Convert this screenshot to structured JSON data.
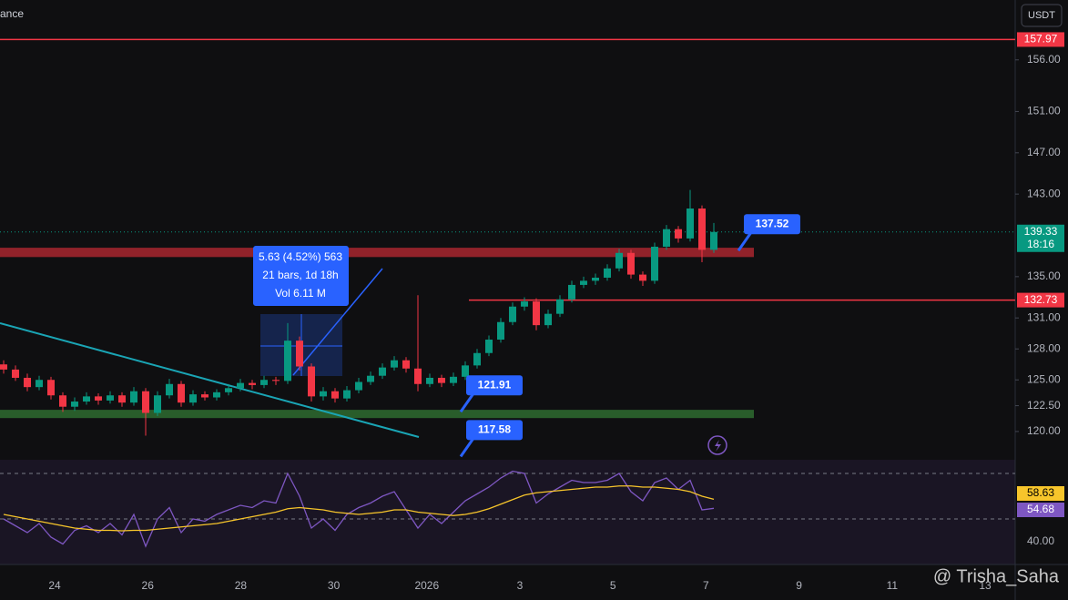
{
  "chart_data": {
    "type": "candlestick",
    "header": "ance",
    "currency": "USDT",
    "up_color": "#089981",
    "down_color": "#f23645",
    "candles": [
      [
        126.5,
        126.9,
        125.6,
        126.0
      ],
      [
        126.0,
        126.4,
        124.9,
        125.2
      ],
      [
        125.2,
        125.6,
        123.9,
        124.3
      ],
      [
        124.3,
        125.4,
        124.0,
        125.0
      ],
      [
        125.0,
        125.3,
        123.1,
        123.5
      ],
      [
        123.5,
        123.8,
        121.9,
        122.4
      ],
      [
        122.4,
        123.3,
        122.0,
        122.9
      ],
      [
        122.9,
        123.8,
        122.6,
        123.4
      ],
      [
        123.4,
        123.7,
        122.6,
        123.0
      ],
      [
        123.0,
        123.9,
        122.7,
        123.5
      ],
      [
        123.5,
        123.8,
        122.4,
        122.8
      ],
      [
        122.8,
        124.3,
        122.5,
        123.9
      ],
      [
        123.9,
        124.2,
        119.6,
        121.8
      ],
      [
        121.8,
        123.9,
        121.5,
        123.5
      ],
      [
        123.5,
        125.1,
        123.2,
        124.6
      ],
      [
        124.6,
        124.9,
        122.4,
        122.8
      ],
      [
        122.8,
        124.0,
        122.5,
        123.6
      ],
      [
        123.6,
        123.9,
        123.0,
        123.3
      ],
      [
        123.3,
        124.1,
        123.0,
        123.8
      ],
      [
        123.8,
        124.6,
        123.5,
        124.2
      ],
      [
        124.2,
        125.1,
        123.9,
        124.7
      ],
      [
        124.7,
        125.0,
        124.1,
        124.5
      ],
      [
        124.5,
        125.4,
        124.2,
        125.0
      ],
      [
        125.0,
        125.3,
        124.5,
        124.9
      ],
      [
        124.9,
        130.5,
        124.6,
        128.8
      ],
      [
        128.8,
        129.2,
        125.9,
        126.3
      ],
      [
        126.3,
        126.6,
        122.9,
        123.4
      ],
      [
        123.4,
        124.3,
        123.0,
        123.9
      ],
      [
        123.9,
        124.2,
        122.8,
        123.2
      ],
      [
        123.2,
        124.4,
        122.9,
        124.0
      ],
      [
        124.0,
        125.2,
        123.7,
        124.8
      ],
      [
        124.8,
        125.8,
        124.5,
        125.4
      ],
      [
        125.4,
        126.6,
        125.1,
        126.2
      ],
      [
        126.2,
        127.3,
        125.9,
        126.9
      ],
      [
        126.9,
        127.2,
        125.7,
        126.1
      ],
      [
        126.1,
        133.2,
        123.9,
        124.6
      ],
      [
        124.6,
        125.6,
        124.3,
        125.2
      ],
      [
        125.2,
        125.5,
        124.3,
        124.7
      ],
      [
        124.7,
        125.7,
        124.4,
        125.3
      ],
      [
        125.3,
        126.8,
        125.0,
        126.4
      ],
      [
        126.4,
        128.0,
        126.1,
        127.6
      ],
      [
        127.6,
        129.3,
        127.3,
        128.9
      ],
      [
        128.9,
        131.0,
        128.6,
        130.6
      ],
      [
        130.6,
        132.5,
        130.3,
        132.1
      ],
      [
        132.1,
        133.0,
        131.7,
        132.6
      ],
      [
        132.6,
        132.9,
        129.8,
        130.3
      ],
      [
        130.3,
        131.8,
        130.0,
        131.4
      ],
      [
        131.4,
        133.2,
        131.1,
        132.8
      ],
      [
        132.8,
        134.6,
        132.5,
        134.2
      ],
      [
        134.2,
        135.0,
        133.9,
        134.6
      ],
      [
        134.6,
        135.3,
        134.2,
        134.9
      ],
      [
        134.9,
        136.2,
        134.6,
        135.8
      ],
      [
        135.8,
        137.7,
        135.5,
        137.3
      ],
      [
        137.3,
        137.6,
        134.8,
        135.2
      ],
      [
        135.2,
        135.5,
        134.1,
        134.6
      ],
      [
        134.6,
        138.3,
        134.3,
        137.9
      ],
      [
        137.9,
        140.0,
        137.6,
        139.6
      ],
      [
        139.6,
        139.9,
        138.3,
        138.7
      ],
      [
        138.7,
        143.4,
        138.4,
        141.6
      ],
      [
        141.6,
        141.9,
        136.4,
        137.6
      ],
      [
        137.6,
        140.2,
        137.3,
        139.33
      ]
    ],
    "ylim": [
      117.7,
      161.8
    ],
    "yticks": [
      {
        "value": 120,
        "label": "120.00"
      },
      {
        "value": 122.5,
        "label": "122.50"
      },
      {
        "value": 125,
        "label": "125.00"
      },
      {
        "value": 128,
        "label": "128.00"
      },
      {
        "value": 131,
        "label": "131.00"
      },
      {
        "value": 135,
        "label": "135.00"
      },
      {
        "value": 143,
        "label": "143.00"
      },
      {
        "value": 147,
        "label": "147.00"
      },
      {
        "value": 151,
        "label": "151.00"
      },
      {
        "value": 156,
        "label": "156.00"
      }
    ],
    "xtick_labels": [
      "24",
      "26",
      "28",
      "30",
      "2026",
      "3",
      "5",
      "7",
      "9",
      "11",
      "13"
    ],
    "price_lines": [
      {
        "value": 157.97,
        "color": "#f23645"
      },
      {
        "value": 132.73,
        "color": "#f23645"
      }
    ],
    "last_price": 139.33,
    "countdown": "18:16",
    "zones": [
      {
        "from": 136.9,
        "to": 137.8,
        "color": "#a8262f"
      },
      {
        "from": 121.3,
        "to": 122.1,
        "color": "#2e6b30"
      }
    ],
    "callouts": [
      137.52,
      121.91,
      117.58
    ],
    "measure": [
      "5.63 (4.52%) 563",
      "21 bars, 1d 18h",
      "Vol 6.11 M"
    ],
    "rsi": {
      "ylim": [
        30,
        76
      ],
      "yticks": [
        {
          "value": 40,
          "label": "40.00"
        }
      ],
      "bands": [
        70,
        50
      ],
      "series": [
        {
          "color": "#7e57c2",
          "values": [
            50,
            47,
            44,
            48,
            42,
            39,
            45,
            47,
            44,
            48,
            43,
            52,
            38,
            50,
            55,
            44,
            50,
            49,
            52,
            54,
            56,
            55,
            58,
            57,
            70,
            60,
            46,
            50,
            45,
            52,
            55,
            57,
            60,
            62,
            54,
            46,
            52,
            48,
            53,
            58,
            61,
            64,
            68,
            71,
            70,
            57,
            61,
            64,
            67,
            66,
            66,
            67,
            70,
            62,
            58,
            66,
            68,
            63,
            67,
            54,
            54.68
          ]
        },
        {
          "color": "#f7c52b",
          "values": [
            52,
            51,
            50,
            49,
            48,
            47,
            46,
            45.5,
            45,
            45,
            44.8,
            45,
            45,
            45.5,
            46,
            46.5,
            47,
            47.5,
            48,
            49,
            50,
            51,
            52,
            53,
            54.5,
            55,
            54.5,
            54,
            53,
            52.5,
            52,
            52.5,
            53,
            54,
            54,
            53,
            52.5,
            52,
            51.5,
            52,
            53,
            54.5,
            56.5,
            58.5,
            60.5,
            61.5,
            62,
            62.5,
            63,
            63.5,
            64,
            64,
            64.5,
            64.5,
            64,
            64,
            63.5,
            63,
            62,
            60,
            58.63
          ]
        }
      ]
    },
    "watermark": "@ Trisha_Saha"
  }
}
